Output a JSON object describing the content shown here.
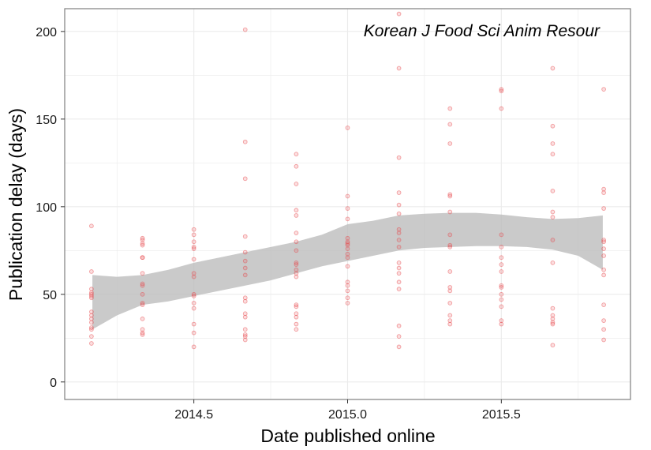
{
  "chart_data": {
    "type": "scatter",
    "xlabel": "Date published online",
    "ylabel": "Publication delay (days)",
    "annotation": "Korean J Food Sci Anim Resour",
    "xlim": [
      2014.08,
      2015.92
    ],
    "ylim": [
      -10,
      213
    ],
    "x_ticks": [
      2014.5,
      2015.0,
      2015.5
    ],
    "x_tick_labels": [
      "2014.5",
      "2015.0",
      "2015.5"
    ],
    "y_ticks": [
      0,
      50,
      100,
      150,
      200
    ],
    "y_tick_labels": [
      "0",
      "50",
      "100",
      "150",
      "200"
    ],
    "grid": true,
    "colors": {
      "points": "#e8474c",
      "band": "#bdbdbd",
      "border": "#7f7f7f",
      "grid": "#ebebeb"
    },
    "series": [
      {
        "groups": [
          {
            "x": 2014.167,
            "y": [
              89,
              63,
              53,
              51,
              50,
              49,
              48,
              40,
              38,
              36,
              34,
              31,
              30,
              26,
              22
            ]
          },
          {
            "x": 2014.333,
            "y": [
              82,
              81,
              79,
              78,
              71,
              71,
              62,
              56,
              55,
              50,
              45,
              44,
              36,
              30,
              28,
              27
            ]
          },
          {
            "x": 2014.5,
            "y": [
              87,
              84,
              80,
              77,
              76,
              70,
              62,
              60,
              50,
              49,
              45,
              42,
              33,
              28,
              20
            ]
          },
          {
            "x": 2014.667,
            "y": [
              201,
              137,
              116,
              83,
              74,
              69,
              65,
              61,
              48,
              46,
              39,
              37,
              30,
              27,
              26,
              24
            ]
          },
          {
            "x": 2014.833,
            "y": [
              130,
              123,
              113,
              98,
              95,
              85,
              80,
              75,
              68,
              67,
              64,
              62,
              60,
              44,
              43,
              39,
              37,
              33,
              30
            ]
          },
          {
            "x": 2015.0,
            "y": [
              145,
              106,
              99,
              93,
              82,
              80,
              79,
              78,
              76,
              73,
              71,
              66,
              57,
              55,
              52,
              48,
              45
            ]
          },
          {
            "x": 2015.167,
            "y": [
              210,
              179,
              128,
              108,
              101,
              96,
              87,
              85,
              81,
              77,
              68,
              65,
              62,
              57,
              53,
              32,
              26,
              20
            ]
          },
          {
            "x": 2015.333,
            "y": [
              156,
              147,
              136,
              107,
              106,
              97,
              84,
              78,
              77,
              63,
              54,
              52,
              45,
              38,
              35,
              33
            ]
          },
          {
            "x": 2015.5,
            "y": [
              167,
              166,
              156,
              84,
              77,
              71,
              67,
              63,
              55,
              54,
              50,
              47,
              43,
              35,
              33
            ]
          },
          {
            "x": 2015.667,
            "y": [
              179,
              146,
              136,
              130,
              109,
              97,
              94,
              81,
              68,
              42,
              38,
              36,
              34,
              33,
              21
            ]
          },
          {
            "x": 2015.833,
            "y": [
              167,
              110,
              108,
              99,
              81,
              80,
              76,
              72,
              64,
              61,
              44,
              35,
              30,
              24
            ]
          }
        ]
      }
    ],
    "smooth_band": {
      "x": [
        2014.17,
        2014.25,
        2014.333,
        2014.417,
        2014.5,
        2014.583,
        2014.667,
        2014.75,
        2014.833,
        2014.917,
        2015.0,
        2015.083,
        2015.167,
        2015.25,
        2015.333,
        2015.417,
        2015.5,
        2015.583,
        2015.667,
        2015.75,
        2015.83
      ],
      "lower": [
        30,
        38,
        44,
        46,
        49,
        52,
        55,
        58,
        62,
        66,
        69,
        72,
        75,
        76.5,
        77,
        77.5,
        77.5,
        77,
        75.5,
        72,
        64
      ],
      "upper": [
        61,
        60,
        61,
        64,
        68,
        71,
        74,
        77,
        80,
        84,
        90,
        92,
        95,
        96,
        96.5,
        96.5,
        95.5,
        94,
        93,
        93.5,
        95
      ]
    }
  }
}
